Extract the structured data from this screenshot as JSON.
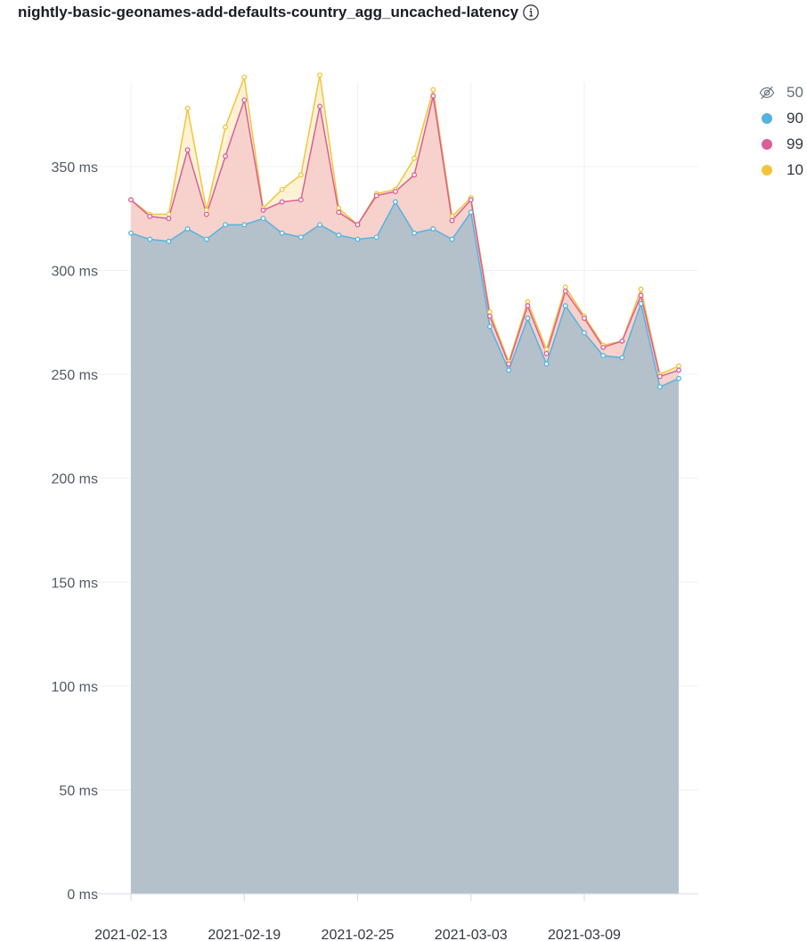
{
  "title": "nightly-basic-geonames-add-defaults-country_agg_uncached-latency",
  "info_icon": "info-icon",
  "legend": [
    {
      "label": "50",
      "color": "#9ba7b8",
      "icon": "eye-closed-icon",
      "hidden": true
    },
    {
      "label": "90",
      "color": "#54b3e0",
      "icon": "dot-icon",
      "hidden": false
    },
    {
      "label": "99",
      "color": "#d95e99",
      "icon": "dot-icon",
      "hidden": false
    },
    {
      "label": "10",
      "color": "#f2c43d",
      "icon": "dot-icon",
      "hidden": false
    }
  ],
  "chart_data": {
    "type": "area",
    "title": "nightly-basic-geonames-add-defaults-country_agg_uncached-latency",
    "xlabel": "",
    "ylabel": "",
    "ylim": [
      0,
      398
    ],
    "y_ticks": [
      0,
      50,
      100,
      150,
      200,
      250,
      300,
      350
    ],
    "y_tick_labels": [
      "0 ms",
      "50 ms",
      "100 ms",
      "150 ms",
      "200 ms",
      "250 ms",
      "300 ms",
      "350 ms"
    ],
    "x_tick_labels": [
      "2021-02-13",
      "2021-02-19",
      "2021-02-25",
      "2021-03-03",
      "2021-03-09"
    ],
    "x_tick_indices": [
      0,
      6,
      12,
      18,
      24
    ],
    "x_start": "2021-02-13",
    "x_end": "2021-03-14",
    "grid": true,
    "legend_position": "right",
    "series": [
      {
        "name": "90",
        "color": "#54b3e0",
        "values": [
          318,
          315,
          314,
          320,
          315,
          322,
          322,
          325,
          318,
          316,
          322,
          317,
          315,
          316,
          333,
          318,
          320,
          315,
          328,
          273,
          252,
          277,
          255,
          283,
          270,
          259,
          258,
          284,
          244,
          248
        ]
      },
      {
        "name": "99",
        "color": "#d95e99",
        "values": [
          334,
          326,
          325,
          358,
          327,
          355,
          382,
          329,
          333,
          334,
          379,
          328,
          322,
          336,
          338,
          346,
          384,
          324,
          334,
          278,
          255,
          283,
          260,
          290,
          277,
          263,
          266,
          288,
          249,
          252
        ]
      },
      {
        "name": "10",
        "color": "#f2c43d",
        "values": [
          334,
          327,
          327,
          378,
          329,
          369,
          393,
          330,
          339,
          346,
          394,
          330,
          322,
          337,
          339,
          354,
          387,
          326,
          335,
          280,
          256,
          285,
          262,
          292,
          278,
          264,
          266,
          291,
          250,
          254
        ]
      }
    ]
  }
}
